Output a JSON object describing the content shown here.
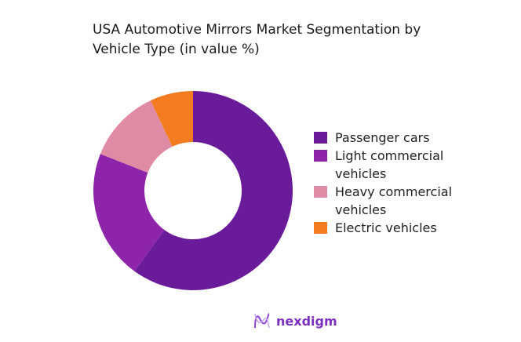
{
  "chart_data": {
    "type": "pie",
    "donut": true,
    "title": "USA Automotive Mirrors Market Segmentation by Vehicle Type (in value %)",
    "categories": [
      "Passenger cars",
      "Light commercial vehicles",
      "Heavy commercial vehicles",
      "Electric vehicles"
    ],
    "values": [
      60,
      21,
      12,
      7
    ],
    "colors": [
      "#6a1b9a",
      "#8e24aa",
      "#e08ba4",
      "#f47c20"
    ],
    "legend_position": "right"
  },
  "logo": {
    "text": "nexdigm"
  }
}
